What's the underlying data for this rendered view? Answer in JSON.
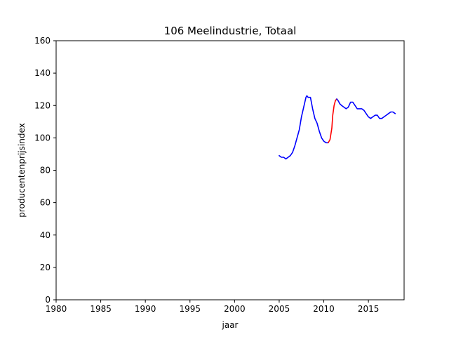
{
  "chart_data": {
    "type": "line",
    "title": "106 Meelindustrie, Totaal",
    "xlabel": "jaar",
    "ylabel": "producentenprijsindex",
    "xlim": [
      1980,
      2019
    ],
    "ylim": [
      0,
      160
    ],
    "xticks": [
      "1980",
      "1985",
      "1990",
      "1995",
      "2000",
      "2005",
      "2010",
      "2015"
    ],
    "yticks": [
      "0",
      "20",
      "40",
      "60",
      "80",
      "100",
      "120",
      "140",
      "160"
    ],
    "grid": false,
    "legend": "none",
    "series": [
      {
        "color": "#0000ff",
        "x": [
          2005.0,
          2005.25,
          2005.5,
          2005.75,
          2006.0,
          2006.25,
          2006.5,
          2006.75,
          2007.0,
          2007.25,
          2007.5,
          2007.75,
          2008.0,
          2008.1,
          2008.25,
          2008.5,
          2008.75,
          2009.0,
          2009.25,
          2009.5,
          2009.75,
          2010.0,
          2010.25,
          2010.5
        ],
        "y": [
          89,
          88,
          88,
          87,
          88,
          89,
          91,
          95,
          100,
          105,
          113,
          119,
          125,
          126,
          125,
          125,
          118,
          112,
          109,
          104,
          100,
          98,
          97,
          97
        ]
      },
      {
        "color": "#ff0000",
        "x": [
          2010.5,
          2010.7,
          2010.9,
          2011.0,
          2011.15,
          2011.3,
          2011.45
        ],
        "y": [
          97,
          99,
          106,
          114,
          120,
          123,
          124
        ]
      },
      {
        "color": "#0000ff",
        "x": [
          2011.45,
          2011.6,
          2011.8,
          2012.0,
          2012.25,
          2012.5,
          2012.75,
          2013.0,
          2013.25,
          2013.5,
          2013.75,
          2014.0,
          2014.25,
          2014.5,
          2014.75,
          2015.0,
          2015.25,
          2015.5,
          2015.75,
          2016.0,
          2016.25,
          2016.5,
          2016.75,
          2017.0,
          2017.25,
          2017.5,
          2017.75,
          2018.0
        ],
        "y": [
          124,
          123,
          121,
          120,
          119,
          118,
          119,
          122,
          122,
          120,
          118,
          118,
          118,
          117,
          115,
          113,
          112,
          113,
          114,
          114,
          112,
          112,
          113,
          114,
          115,
          116,
          116,
          115
        ]
      }
    ]
  }
}
